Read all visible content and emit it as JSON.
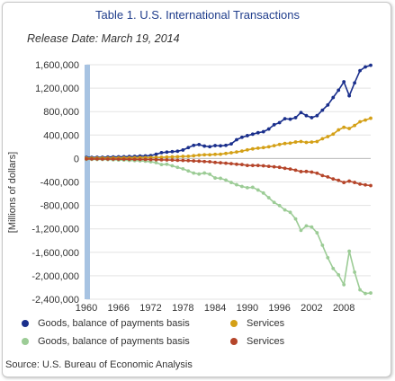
{
  "title": "Table 1. U.S. International Transactions",
  "subtitle": "Release Date: March 19, 2014",
  "source": "Source: U.S. Bureau of Economic Analysis",
  "colors": {
    "goods_exports": "#1a2f8c",
    "services_exports": "#d4a017",
    "goods_imports": "#9ccc96",
    "services_imports": "#b5452a",
    "title": "#1f3d8c",
    "axis_band": "#a7c3e2"
  },
  "legend": [
    {
      "label": "Goods, balance of payments basis",
      "color": "#1a2f8c"
    },
    {
      "label": "Services",
      "color": "#d4a017"
    },
    {
      "label": "Goods, balance of payments basis",
      "color": "#9ccc96"
    },
    {
      "label": "Services",
      "color": "#b5452a"
    }
  ],
  "chart_data": {
    "type": "line",
    "ylabel": "[Millions of dollars]",
    "xlabel": "",
    "ylim": [
      -2400000,
      1600000
    ],
    "yticks": [
      "1,600,000",
      "1,200,000",
      "800,000",
      "400,000",
      "0",
      "-400,000",
      "-800,000",
      "-1,200,000",
      "-1,600,000",
      "-2,000,000",
      "-2,400,000"
    ],
    "ytick_values": [
      1600000,
      1200000,
      800000,
      400000,
      0,
      -400000,
      -800000,
      -1200000,
      -1600000,
      -2000000,
      -2400000
    ],
    "xticks": [
      "1960",
      "1966",
      "1972",
      "1978",
      "1984",
      "1990",
      "1996",
      "2002",
      "2008"
    ],
    "xtick_values": [
      1960,
      1966,
      1972,
      1978,
      1984,
      1990,
      1996,
      2002,
      2008
    ],
    "xlim": [
      1960,
      2013
    ],
    "grid": true,
    "legend_position": "bottom",
    "series": [
      {
        "name": "Goods, balance of payments basis",
        "color": "#1a2f8c",
        "x": [
          1960,
          1961,
          1962,
          1963,
          1964,
          1965,
          1966,
          1967,
          1968,
          1969,
          1970,
          1971,
          1972,
          1973,
          1974,
          1975,
          1976,
          1977,
          1978,
          1979,
          1980,
          1981,
          1982,
          1983,
          1984,
          1985,
          1986,
          1987,
          1988,
          1989,
          1990,
          1991,
          1992,
          1993,
          1994,
          1995,
          1996,
          1997,
          1998,
          1999,
          2000,
          2001,
          2002,
          2003,
          2004,
          2005,
          2006,
          2007,
          2008,
          2009,
          2010,
          2011,
          2012,
          2013
        ],
        "values": [
          20000,
          20000,
          21000,
          22000,
          25000,
          27000,
          29000,
          31000,
          34000,
          37000,
          43000,
          44000,
          50000,
          72000,
          100000,
          109000,
          117000,
          124000,
          145000,
          186000,
          225000,
          238000,
          212000,
          202000,
          220000,
          216000,
          224000,
          250000,
          320000,
          362000,
          390000,
          415000,
          440000,
          457000,
          503000,
          576000,
          612000,
          679000,
          670000,
          697000,
          784000,
          731000,
          697000,
          731000,
          824000,
          913000,
          1040000,
          1165000,
          1308000,
          1070000,
          1290000,
          1499000,
          1562000,
          1590000
        ]
      },
      {
        "name": "Services",
        "color": "#d4a017",
        "x": [
          1960,
          1961,
          1962,
          1963,
          1964,
          1965,
          1966,
          1967,
          1968,
          1969,
          1970,
          1971,
          1972,
          1973,
          1974,
          1975,
          1976,
          1977,
          1978,
          1979,
          1980,
          1981,
          1982,
          1983,
          1984,
          1985,
          1986,
          1987,
          1988,
          1989,
          1990,
          1991,
          1992,
          1993,
          1994,
          1995,
          1996,
          1997,
          1998,
          1999,
          2000,
          2001,
          2002,
          2003,
          2004,
          2005,
          2006,
          2007,
          2008,
          2009,
          2010,
          2011,
          2012,
          2013
        ],
        "values": [
          6000,
          6000,
          7000,
          7000,
          8000,
          9000,
          10000,
          11000,
          12000,
          13000,
          15000,
          16000,
          17000,
          19000,
          22000,
          25000,
          28000,
          31000,
          36000,
          39000,
          47000,
          57000,
          64000,
          64000,
          71000,
          73000,
          86000,
          98000,
          111000,
          127000,
          147000,
          164000,
          177000,
          186000,
          200000,
          219000,
          239000,
          256000,
          262000,
          281000,
          290000,
          274000,
          280000,
          289000,
          338000,
          373000,
          416000,
          488000,
          532000,
          512000,
          563000,
          627000,
          656000,
          687000
        ]
      },
      {
        "name": "Goods, balance of payments basis",
        "color": "#9ccc96",
        "x": [
          1960,
          1961,
          1962,
          1963,
          1964,
          1965,
          1966,
          1967,
          1968,
          1969,
          1970,
          1971,
          1972,
          1973,
          1974,
          1975,
          1976,
          1977,
          1978,
          1979,
          1980,
          1981,
          1982,
          1983,
          1984,
          1985,
          1986,
          1987,
          1988,
          1989,
          1990,
          1991,
          1992,
          1993,
          1994,
          1995,
          1996,
          1997,
          1998,
          1999,
          2000,
          2001,
          2002,
          2003,
          2004,
          2005,
          2006,
          2007,
          2008,
          2009,
          2010,
          2011,
          2012,
          2013
        ],
        "values": [
          -15000,
          -15000,
          -16000,
          -17000,
          -19000,
          -22000,
          -26000,
          -27000,
          -33000,
          -36000,
          -40000,
          -46000,
          -56000,
          -71000,
          -103000,
          -98000,
          -124000,
          -151000,
          -176000,
          -212000,
          -249000,
          -265000,
          -248000,
          -268000,
          -332000,
          -338000,
          -368000,
          -409000,
          -447000,
          -477000,
          -498000,
          -491000,
          -537000,
          -589000,
          -669000,
          -749000,
          -803000,
          -877000,
          -918000,
          -1030000,
          -1226000,
          -1149000,
          -1168000,
          -1267000,
          -1478000,
          -1692000,
          -1876000,
          -1985000,
          -2151000,
          -1580000,
          -1939000,
          -2240000,
          -2303000,
          -2294000
        ]
      },
      {
        "name": "Services",
        "color": "#b5452a",
        "x": [
          1960,
          1961,
          1962,
          1963,
          1964,
          1965,
          1966,
          1967,
          1968,
          1969,
          1970,
          1971,
          1972,
          1973,
          1974,
          1975,
          1976,
          1977,
          1978,
          1979,
          1980,
          1981,
          1982,
          1983,
          1984,
          1985,
          1986,
          1987,
          1988,
          1989,
          1990,
          1991,
          1992,
          1993,
          1994,
          1995,
          1996,
          1997,
          1998,
          1999,
          2000,
          2001,
          2002,
          2003,
          2004,
          2005,
          2006,
          2007,
          2008,
          2009,
          2010,
          2011,
          2012,
          2013
        ],
        "values": [
          -8000,
          -8000,
          -8000,
          -9000,
          -9000,
          -10000,
          -11000,
          -12000,
          -13000,
          -14000,
          -15000,
          -16000,
          -18000,
          -20000,
          -23000,
          -24000,
          -27000,
          -30000,
          -33000,
          -36000,
          -41000,
          -45000,
          -51000,
          -55000,
          -67000,
          -73000,
          -80000,
          -88000,
          -98000,
          -103000,
          -118000,
          -119000,
          -119000,
          -125000,
          -134000,
          -142000,
          -150000,
          -167000,
          -180000,
          -199000,
          -223000,
          -221000,
          -231000,
          -250000,
          -291000,
          -314000,
          -349000,
          -372000,
          -409000,
          -386000,
          -409000,
          -436000,
          -450000,
          -462000
        ]
      }
    ]
  }
}
